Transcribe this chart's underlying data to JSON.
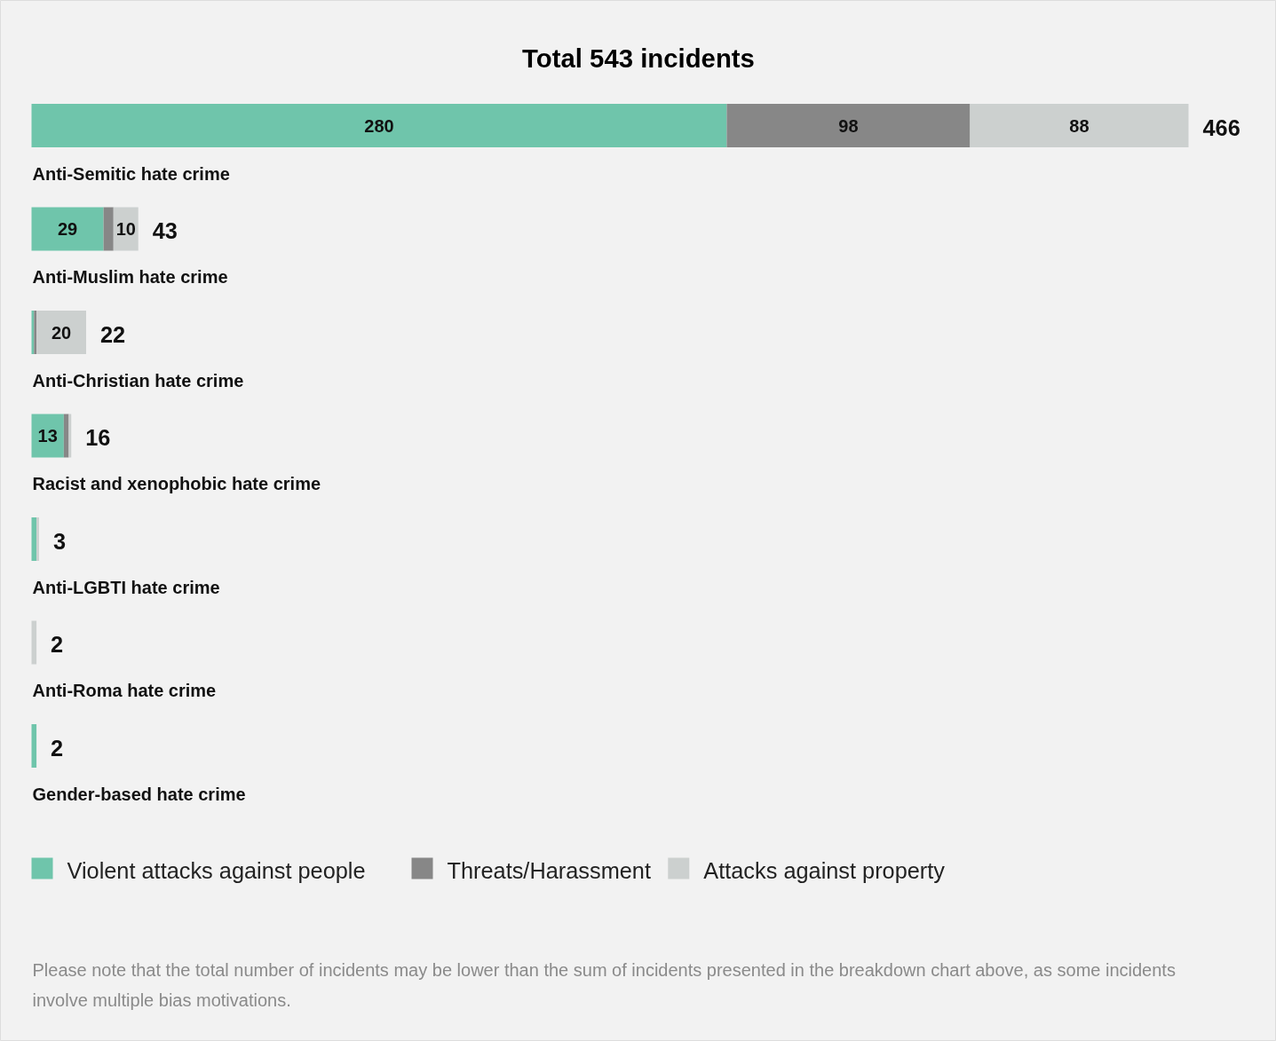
{
  "chart_data": {
    "type": "bar",
    "title": "Total 543 incidents",
    "orientation": "horizontal",
    "stacked": true,
    "categories": [
      "Anti-Semitic hate crime",
      "Anti-Muslim hate crime",
      "Anti-Christian hate crime",
      "Racist and xenophobic hate crime",
      "Anti-LGBTI hate crime",
      "Anti-Roma hate crime",
      "Gender-based hate crime"
    ],
    "series": [
      {
        "name": "Violent attacks against people",
        "color": "#6fc5ab",
        "values": [
          280,
          29,
          1,
          13,
          2,
          0,
          2
        ],
        "value_labels": [
          "280",
          "29",
          null,
          "13",
          null,
          null,
          null
        ]
      },
      {
        "name": "Threats/Harassment",
        "color": "#878787",
        "values": [
          98,
          4,
          1,
          2,
          0,
          0,
          0
        ],
        "value_labels": [
          "98",
          null,
          null,
          null,
          null,
          null,
          null
        ]
      },
      {
        "name": "Attacks against property",
        "color": "#ccd0cf",
        "values": [
          88,
          10,
          20,
          1,
          1,
          2,
          0
        ],
        "value_labels": [
          "88",
          "10",
          "20",
          null,
          null,
          null,
          null
        ]
      }
    ],
    "totals": [
      "466",
      "43",
      "22",
      "16",
      "3",
      "2",
      "2"
    ],
    "tick_labels": false,
    "legend": "bottom",
    "annotations": [
      "Please note that the total number of incidents may be lower than the sum of incidents presented in the breakdown chart above, as some incidents involve multiple bias motivations."
    ]
  }
}
